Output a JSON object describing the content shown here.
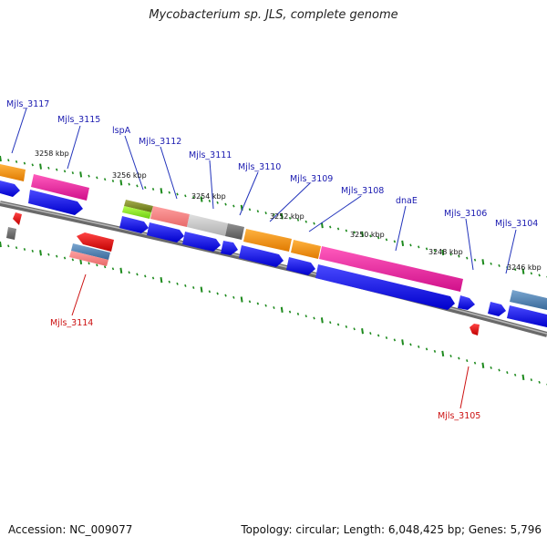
{
  "title": "Mycobacterium sp. JLS, complete genome",
  "footer": {
    "accession": "Accession: NC_009077",
    "topology": "Topology: circular; Length: 6,048,425 bp; Genes: 5,796"
  },
  "colors": {
    "forward_label": "#1a1ab0",
    "reverse_label": "#cc1111",
    "backbone": "#808080",
    "tick": "#1d8a1d",
    "cds_forward": "#0a0ae0",
    "cds_reverse": "#e01010",
    "leader": "#2233bb"
  },
  "axis_labels": [
    "3258 kbp",
    "3256 kbp",
    "3254 kbp",
    "3252 kbp",
    "3250 kbp",
    "3248 kbp",
    "3246 kbp"
  ],
  "gene_labels": [
    {
      "name": "Mjls_3117",
      "strand": "forward"
    },
    {
      "name": "Mjls_3115",
      "strand": "forward"
    },
    {
      "name": "lspA",
      "strand": "forward"
    },
    {
      "name": "Mjls_3112",
      "strand": "forward"
    },
    {
      "name": "Mjls_3111",
      "strand": "forward"
    },
    {
      "name": "Mjls_3110",
      "strand": "forward"
    },
    {
      "name": "Mjls_3109",
      "strand": "forward"
    },
    {
      "name": "Mjls_3108",
      "strand": "forward"
    },
    {
      "name": "dnaE",
      "strand": "forward"
    },
    {
      "name": "Mjls_3106",
      "strand": "forward"
    },
    {
      "name": "Mjls_3104",
      "strand": "forward"
    },
    {
      "name": "Mjls_3114",
      "strand": "reverse"
    },
    {
      "name": "Mjls_3105",
      "strand": "reverse"
    }
  ]
}
